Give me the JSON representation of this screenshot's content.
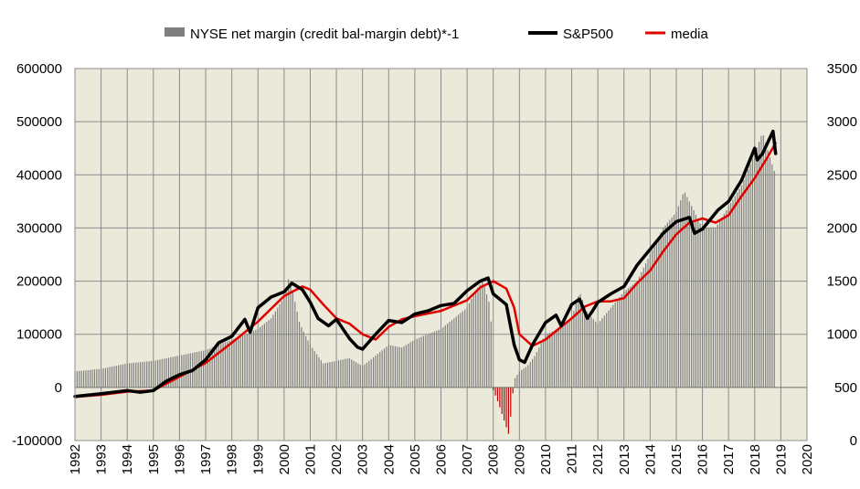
{
  "chart_data": {
    "type": "bar+line",
    "title": "",
    "legend": {
      "position": "top",
      "items": [
        {
          "label": "NYSE net margin (credit bal-margin debt)*-1",
          "color": "#7f7f7f",
          "kind": "bar"
        },
        {
          "label": "S&P500",
          "color": "#000000",
          "kind": "line"
        },
        {
          "label": "media",
          "color": "#e00000",
          "kind": "line"
        }
      ]
    },
    "grid": true,
    "plot_background": "#ebe9d9",
    "x_axis": {
      "range": [
        1992,
        2020
      ],
      "tick_labels": [
        "1992",
        "1993",
        "1994",
        "1995",
        "1996",
        "1997",
        "1998",
        "1999",
        "2000",
        "2001",
        "2002",
        "2003",
        "2004",
        "2005",
        "2006",
        "2007",
        "2008",
        "2009",
        "2010",
        "2011",
        "2012",
        "2013",
        "2014",
        "2015",
        "2016",
        "2017",
        "2018",
        "2019",
        "2020"
      ]
    },
    "y_left": {
      "range": [
        -100000,
        600000
      ],
      "tick_labels": [
        "-100000",
        "0",
        "100000",
        "200000",
        "300000",
        "400000",
        "500000",
        "600000"
      ]
    },
    "y_right": {
      "range": [
        0,
        3500
      ],
      "tick_labels": [
        "0",
        "500",
        "1000",
        "1500",
        "2000",
        "2500",
        "3000",
        "3500"
      ]
    },
    "series": [
      {
        "name": "NYSE net margin (credit bal-margin debt)*-1",
        "axis": "left",
        "type": "bar",
        "color": "#7f7f7f",
        "negative_color": "#c00000",
        "x": [
          1992.0,
          1993.0,
          1994.0,
          1995.0,
          1996.0,
          1997.0,
          1998.0,
          1998.5,
          1999.0,
          1999.5,
          2000.0,
          2000.2,
          2000.6,
          2001.0,
          2001.5,
          2002.0,
          2002.5,
          2003.0,
          2003.5,
          2004.0,
          2004.5,
          2005.0,
          2005.5,
          2006.0,
          2006.5,
          2007.0,
          2007.3,
          2007.6,
          2007.9,
          2008.0,
          2008.2,
          2008.4,
          2008.6,
          2008.8,
          2009.0,
          2009.3,
          2009.6,
          2010.0,
          2010.5,
          2011.0,
          2011.3,
          2011.6,
          2012.0,
          2012.5,
          2013.0,
          2013.5,
          2014.0,
          2014.5,
          2015.0,
          2015.3,
          2015.6,
          2016.0,
          2016.5,
          2017.0,
          2017.5,
          2018.0,
          2018.3,
          2018.6,
          2018.8
        ],
        "values": [
          30000,
          35000,
          45000,
          50000,
          60000,
          70000,
          90000,
          100000,
          110000,
          130000,
          170000,
          210000,
          120000,
          80000,
          45000,
          50000,
          55000,
          40000,
          60000,
          80000,
          75000,
          90000,
          100000,
          110000,
          130000,
          150000,
          180000,
          200000,
          150000,
          -5000,
          -30000,
          -60000,
          -90000,
          15000,
          30000,
          40000,
          60000,
          100000,
          110000,
          130000,
          180000,
          140000,
          120000,
          150000,
          180000,
          200000,
          250000,
          300000,
          330000,
          370000,
          340000,
          300000,
          300000,
          340000,
          380000,
          440000,
          480000,
          430000,
          400000
        ]
      },
      {
        "name": "S&P500",
        "axis": "right",
        "type": "line",
        "color": "#000000",
        "x": [
          1992.0,
          1993.0,
          1994.0,
          1994.5,
          1995.0,
          1995.5,
          1996.0,
          1996.5,
          1997.0,
          1997.5,
          1998.0,
          1998.5,
          1998.7,
          1999.0,
          1999.5,
          2000.0,
          2000.3,
          2000.7,
          2001.0,
          2001.3,
          2001.7,
          2002.0,
          2002.5,
          2002.8,
          2003.0,
          2003.5,
          2004.0,
          2004.5,
          2005.0,
          2005.5,
          2006.0,
          2006.5,
          2007.0,
          2007.5,
          2007.8,
          2008.0,
          2008.5,
          2008.8,
          2009.0,
          2009.2,
          2009.5,
          2010.0,
          2010.4,
          2010.6,
          2011.0,
          2011.3,
          2011.6,
          2011.8,
          2012.0,
          2012.5,
          2013.0,
          2013.5,
          2014.0,
          2014.5,
          2015.0,
          2015.5,
          2015.7,
          2016.0,
          2016.3,
          2016.6,
          2017.0,
          2017.5,
          2018.0,
          2018.1,
          2018.3,
          2018.7,
          2018.8
        ],
        "values": [
          415,
          440,
          470,
          455,
          470,
          560,
          620,
          660,
          760,
          920,
          980,
          1140,
          1020,
          1250,
          1350,
          1400,
          1480,
          1420,
          1300,
          1150,
          1080,
          1140,
          960,
          880,
          860,
          1000,
          1130,
          1110,
          1190,
          1220,
          1270,
          1290,
          1410,
          1500,
          1530,
          1380,
          1280,
          900,
          760,
          735,
          900,
          1110,
          1180,
          1080,
          1280,
          1330,
          1150,
          1220,
          1300,
          1380,
          1450,
          1650,
          1800,
          1950,
          2060,
          2100,
          1950,
          1990,
          2080,
          2170,
          2250,
          2450,
          2750,
          2640,
          2700,
          2910,
          2700
        ]
      },
      {
        "name": "media",
        "axis": "right",
        "type": "line",
        "color": "#e00000",
        "x": [
          1992.0,
          1993.0,
          1994.0,
          1995.0,
          1996.0,
          1997.0,
          1998.0,
          1999.0,
          2000.0,
          2000.7,
          2001.0,
          2001.5,
          2002.0,
          2002.5,
          2003.0,
          2003.5,
          2004.0,
          2004.5,
          2005.0,
          2006.0,
          2007.0,
          2007.5,
          2008.0,
          2008.5,
          2008.8,
          2009.0,
          2009.5,
          2010.0,
          2010.5,
          2011.0,
          2011.5,
          2012.0,
          2012.5,
          2013.0,
          2013.5,
          2014.0,
          2014.5,
          2015.0,
          2015.5,
          2016.0,
          2016.5,
          2017.0,
          2017.5,
          2018.0,
          2018.5,
          2018.8
        ],
        "values": [
          410,
          430,
          460,
          470,
          600,
          730,
          920,
          1120,
          1360,
          1450,
          1420,
          1280,
          1150,
          1100,
          1000,
          950,
          1070,
          1140,
          1170,
          1220,
          1320,
          1440,
          1500,
          1430,
          1250,
          1000,
          890,
          950,
          1050,
          1150,
          1260,
          1310,
          1310,
          1340,
          1480,
          1600,
          1780,
          1940,
          2050,
          2090,
          2050,
          2120,
          2300,
          2470,
          2670,
          2800
        ]
      }
    ]
  }
}
